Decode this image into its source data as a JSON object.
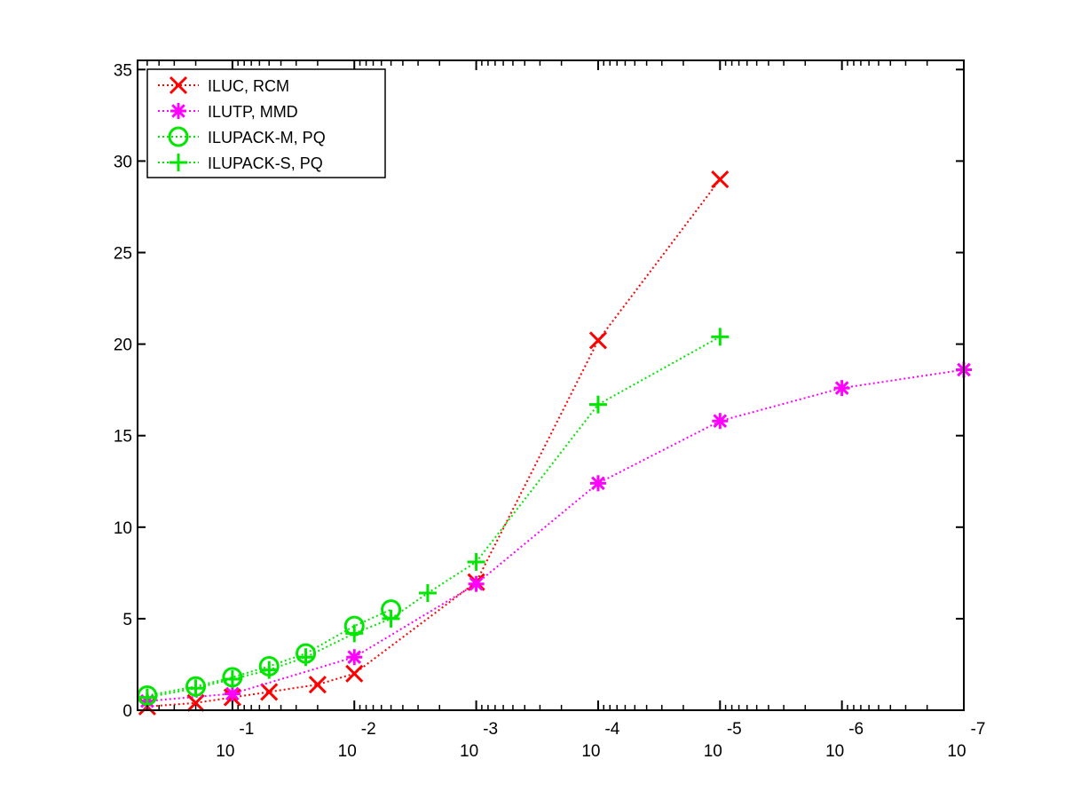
{
  "chart_data": {
    "type": "line",
    "title": "",
    "xlabel": "",
    "ylabel": "",
    "x_scale": "log-reversed",
    "xlim": [
      0.6,
      1e-07
    ],
    "ylim": [
      0,
      35.5
    ],
    "grid": false,
    "legend_position": "top-left",
    "x_ticks": [
      {
        "base": "10",
        "exp": "-1"
      },
      {
        "base": "10",
        "exp": "-2"
      },
      {
        "base": "10",
        "exp": "-3"
      },
      {
        "base": "10",
        "exp": "-4"
      },
      {
        "base": "10",
        "exp": "-5"
      },
      {
        "base": "10",
        "exp": "-6"
      },
      {
        "base": "10",
        "exp": "-7"
      }
    ],
    "y_ticks": [
      "0",
      "5",
      "10",
      "15",
      "20",
      "25",
      "30",
      "35"
    ],
    "series": [
      {
        "name": "ILUC, RCM",
        "color": "#ff0000",
        "marker": "x",
        "x": [
          0.5,
          0.2,
          0.1,
          0.05,
          0.02,
          0.01,
          0.001,
          0.0001,
          1e-05
        ],
        "y": [
          0.2,
          0.4,
          0.7,
          1.0,
          1.4,
          2.0,
          7.0,
          20.2,
          29.0
        ]
      },
      {
        "name": "ILUTP, MMD",
        "color": "#ff00ff",
        "marker": "asterisk",
        "x": [
          0.5,
          0.1,
          0.01,
          0.001,
          0.0001,
          1e-05,
          1e-06,
          1e-07
        ],
        "y": [
          0.5,
          0.9,
          2.9,
          6.9,
          12.4,
          15.8,
          17.6,
          18.6
        ]
      },
      {
        "name": "ILUPACK-M, PQ",
        "color": "#00e600",
        "marker": "circle",
        "x": [
          0.5,
          0.2,
          0.1,
          0.05,
          0.025,
          0.01,
          0.005
        ],
        "y": [
          0.8,
          1.3,
          1.8,
          2.4,
          3.1,
          4.6,
          5.5
        ]
      },
      {
        "name": "ILUPACK-S, PQ",
        "color": "#00e600",
        "marker": "plus",
        "x": [
          0.5,
          0.2,
          0.1,
          0.05,
          0.025,
          0.01,
          0.005,
          0.0025,
          0.001,
          0.0001,
          1e-05
        ],
        "y": [
          0.7,
          1.2,
          1.7,
          2.2,
          2.9,
          4.2,
          5.0,
          6.4,
          8.1,
          16.7,
          20.4
        ]
      }
    ]
  }
}
